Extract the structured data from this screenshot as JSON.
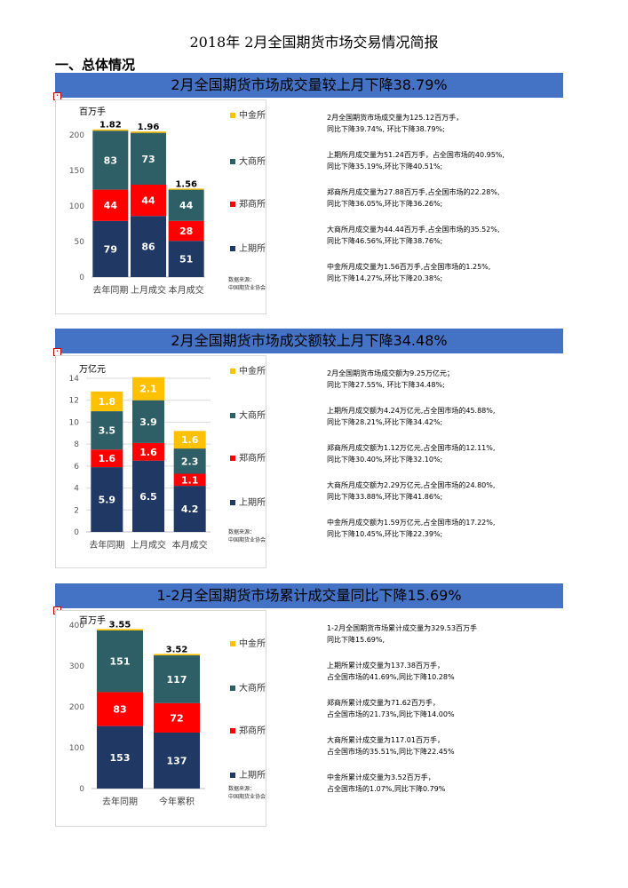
{
  "doc_title": "2018年  2月全国期货市场交易情况简报",
  "section_heading": "一、总体情况",
  "colors": {
    "banner": "#4472c4",
    "上期所": "#1f3864",
    "郑商所": "#ff0000",
    "大商所": "#2f5f66",
    "中金所": "#ffc000"
  },
  "legend_order": [
    "中金所",
    "大商所",
    "郑商所",
    "上期所"
  ],
  "data_source": [
    "数据来源：",
    "中国期货业协会"
  ],
  "blocks": [
    {
      "banner": "2月全国期货市场成交量较上月下降38.79%",
      "unit": "百万手",
      "notes": [
        "2月全国期货市场成交量为125.12百万手，\n同比下降39.74%, 环比下降38.79%;",
        "上期所月成交量为51.24百万手，占全国市场的40.95%,\n同比下降35.19%,环比下降40.51%;",
        "郑商所月成交量为27.88百万手,占全国市场的22.28%,\n同比下降36.05%,环比下降36.26%;",
        "大商所月成交量为44.44百万手,占全国市场的35.52%,\n同比下降46.56%,环比下降38.76%;",
        "中金所月成交量为1.56百万手,占全国市场的1.25%,\n同比下降14.27%,环比下降20.38%;"
      ]
    },
    {
      "banner": "2月全国期货市场成交额较上月下降34.48%",
      "unit": "万亿元",
      "notes": [
        "2月全国期货市场成交额为9.25万亿元；\n同比下降27.55%, 环比下降34.48%;",
        "上期所月成交额为4.24万亿元,占全国市场的45.88%,\n同比下降28.21%,环比下降34.42%;",
        "郑商所月成交额为1.12万亿元,占全国市场的12.11%,\n同比下降30.40%,环比下降32.10%;",
        "大商所月成交额为2.29万亿元,占全国市场的24.80%,\n同比下降33.88%,环比下降41.86%;",
        "中金所月成交额为1.59万亿元,占全国市场的17.22%,\n同比下降10.45%,环比下降22.39%;"
      ]
    },
    {
      "banner": "1-2月全国期货市场累计成交量同比下降15.69%",
      "unit": "百万手",
      "notes": [
        "1-2月全国期货市场累计成交量为329.53百万手\n同比下降15.69%,",
        "上期所累计成交量为137.38百万手，\n占全国市场的41.69%,同比下降10.28%",
        "郑商所累计成交量为71.62百万手，\n占全国市场的21.73%,同比下降14.00%",
        "大商所累计成交量为117.01百万手，\n占全国市场的35.51%,同比下降22.45%",
        "中金所累计成交量为3.52百万手，\n占全国市场的1.07%,同比下降0.79%"
      ]
    }
  ],
  "chart_data": [
    {
      "type": "bar",
      "stacked": true,
      "categories": [
        "去年同期",
        "上月成交",
        "本月成交"
      ],
      "series": [
        {
          "name": "上期所",
          "values": [
            79,
            86,
            51
          ],
          "labels": [
            "79",
            "86",
            "51"
          ]
        },
        {
          "name": "郑商所",
          "values": [
            44,
            44,
            28
          ],
          "labels": [
            "44",
            "44",
            "28"
          ]
        },
        {
          "name": "大商所",
          "values": [
            83,
            73,
            44
          ],
          "labels": [
            "83",
            "73",
            "44"
          ]
        },
        {
          "name": "中金所",
          "values": [
            1.82,
            1.96,
            1.56
          ],
          "labels": [
            "1.82",
            "1.96",
            "1.56"
          ]
        }
      ],
      "yticks": [
        "0",
        "50",
        "100",
        "150",
        "200"
      ],
      "ylim": [
        0,
        210
      ],
      "ylabel": "百万手",
      "legend": "right",
      "grid": false
    },
    {
      "type": "bar",
      "stacked": true,
      "categories": [
        "去年同期",
        "上月成交",
        "本月成交"
      ],
      "series": [
        {
          "name": "上期所",
          "values": [
            5.9,
            6.5,
            4.2
          ],
          "labels": [
            "5.9",
            "6.5",
            "4.2"
          ]
        },
        {
          "name": "郑商所",
          "values": [
            1.6,
            1.6,
            1.1
          ],
          "labels": [
            "1.6",
            "1.6",
            "1.1"
          ]
        },
        {
          "name": "大商所",
          "values": [
            3.5,
            3.9,
            2.3
          ],
          "labels": [
            "3.5",
            "3.9",
            "2.3"
          ]
        },
        {
          "name": "中金所",
          "values": [
            1.8,
            2.1,
            1.6
          ],
          "labels": [
            "1.8",
            "2.1",
            "1.6"
          ]
        }
      ],
      "yticks": [
        "0",
        "2",
        "4",
        "6",
        "8",
        "10",
        "12",
        "14"
      ],
      "ylim": [
        0,
        14
      ],
      "ylabel": "万亿元",
      "legend": "right",
      "grid": true
    },
    {
      "type": "bar",
      "stacked": true,
      "categories": [
        "去年同期",
        "今年累积"
      ],
      "series": [
        {
          "name": "上期所",
          "values": [
            153,
            137
          ],
          "labels": [
            "153",
            "137"
          ]
        },
        {
          "name": "郑商所",
          "values": [
            83,
            72
          ],
          "labels": [
            "83",
            "72"
          ]
        },
        {
          "name": "大商所",
          "values": [
            151,
            117
          ],
          "labels": [
            "151",
            "117"
          ]
        },
        {
          "name": "中金所",
          "values": [
            3.55,
            3.52
          ],
          "labels": [
            "3.55",
            "3.52"
          ]
        }
      ],
      "yticks": [
        "0",
        "100",
        "200",
        "300",
        "400"
      ],
      "ylim": [
        0,
        400
      ],
      "ylabel": "百万手",
      "legend": "right",
      "grid": false
    }
  ]
}
